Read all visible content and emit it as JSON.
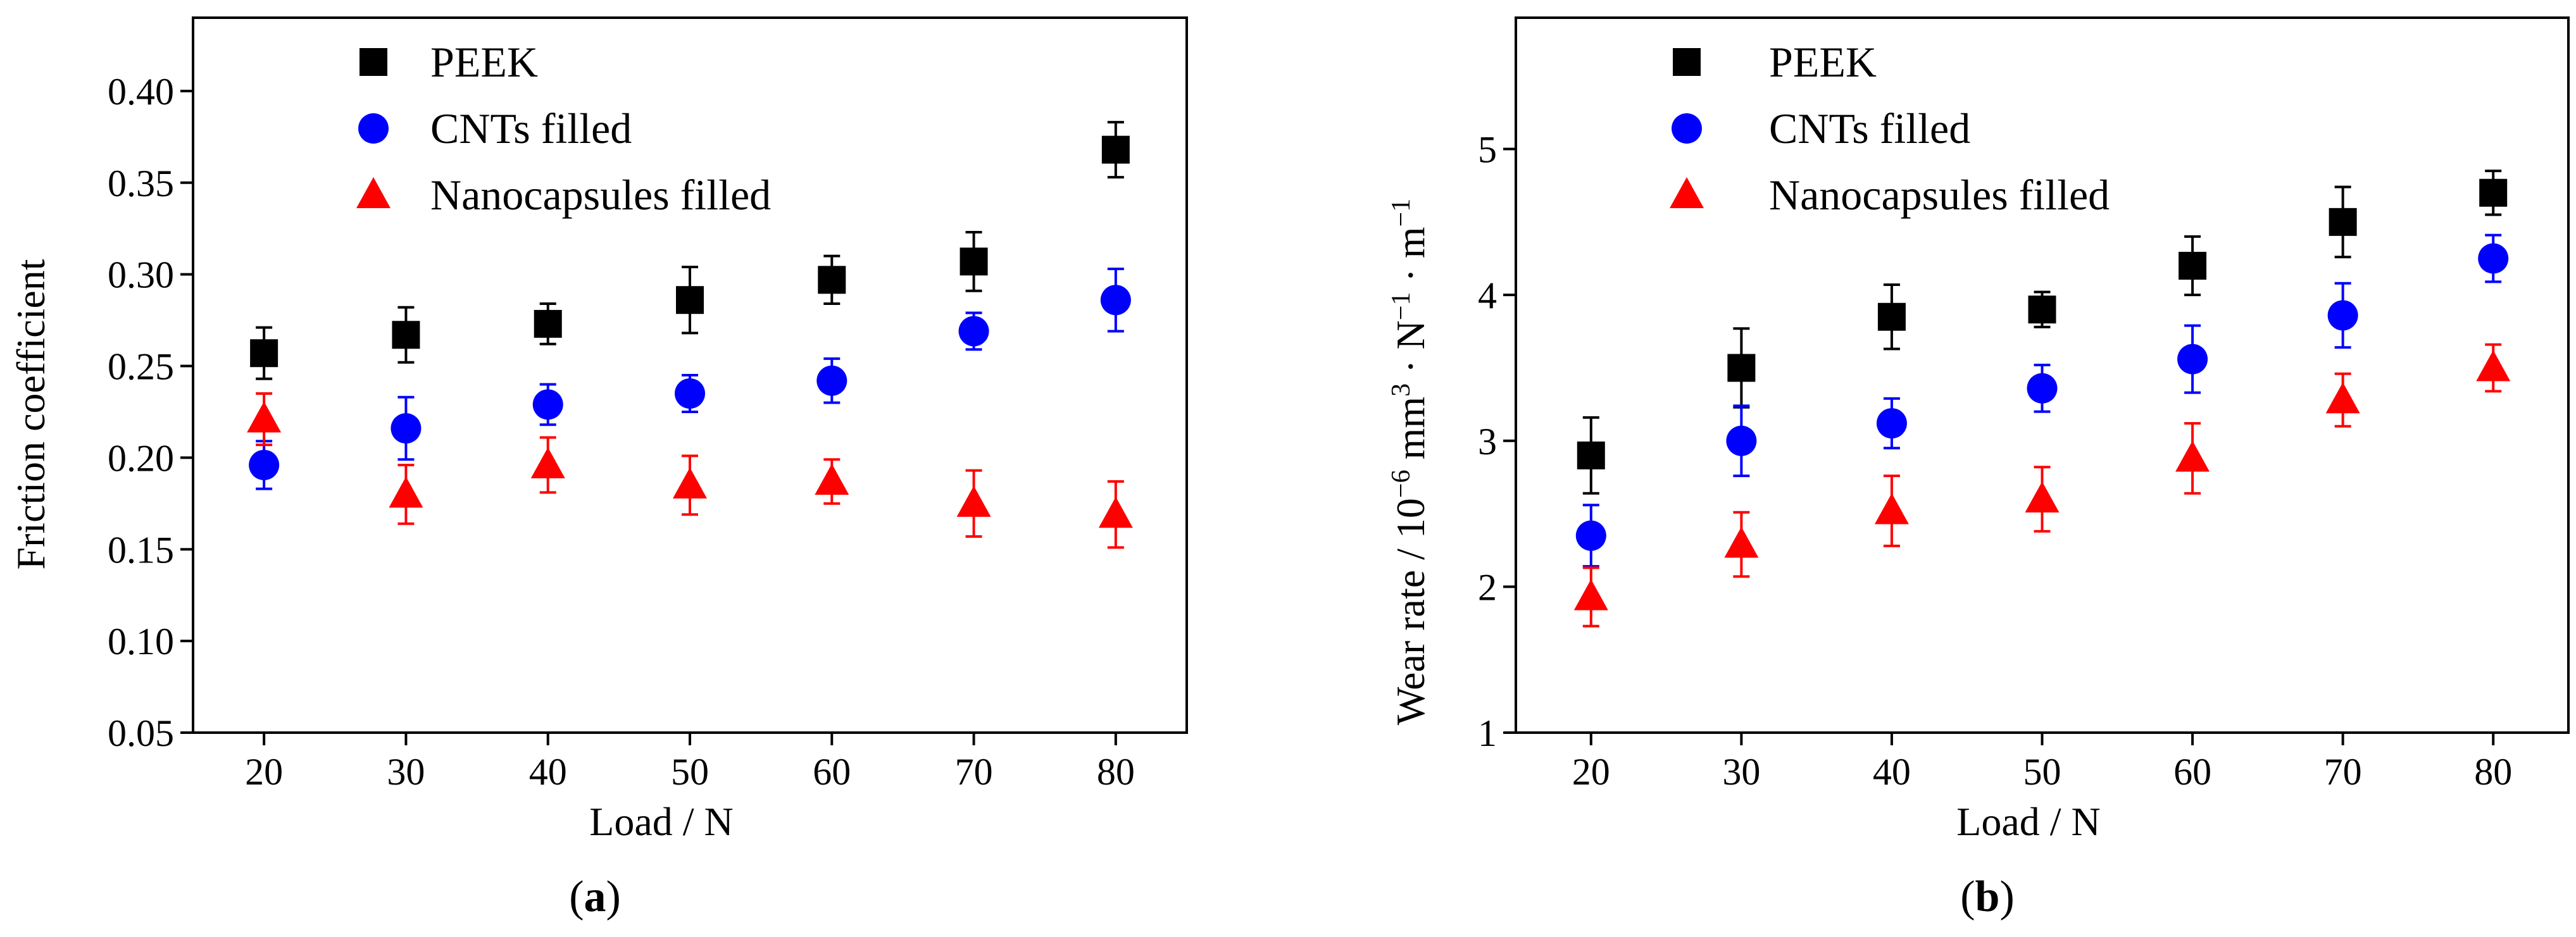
{
  "chart_data": [
    {
      "type": "scatter",
      "panel_label": "a",
      "xlabel": "Load / N",
      "ylabel": "Friction coefficient",
      "xlim": [
        15,
        85
      ],
      "ylim": [
        0.05,
        0.44
      ],
      "xticks": [
        20,
        30,
        40,
        50,
        60,
        70,
        80
      ],
      "yticks": [
        0.05,
        0.1,
        0.15,
        0.2,
        0.25,
        0.3,
        0.35,
        0.4
      ],
      "ytick_labels": [
        "0.05",
        "0.10",
        "0.15",
        "0.20",
        "0.25",
        "0.30",
        "0.35",
        "0.40"
      ],
      "grid": false,
      "legend_position": "top-center",
      "x": [
        20,
        30,
        40,
        50,
        60,
        70,
        80
      ],
      "series": [
        {
          "name": "PEEK",
          "marker": "square",
          "color": "#000000",
          "values": [
            0.257,
            0.267,
            0.273,
            0.286,
            0.297,
            0.307,
            0.368
          ],
          "errors": [
            0.014,
            0.015,
            0.011,
            0.018,
            0.013,
            0.016,
            0.015
          ]
        },
        {
          "name": "CNTs filled",
          "marker": "circle",
          "color": "#0000ff",
          "values": [
            0.196,
            0.216,
            0.229,
            0.235,
            0.242,
            0.269,
            0.286
          ],
          "errors": [
            0.013,
            0.017,
            0.011,
            0.01,
            0.012,
            0.01,
            0.017
          ]
        },
        {
          "name": "Nanocapsules filled",
          "marker": "triangle",
          "color": "#ff0000",
          "values": [
            0.221,
            0.18,
            0.196,
            0.185,
            0.187,
            0.175,
            0.169
          ],
          "errors": [
            0.014,
            0.016,
            0.015,
            0.016,
            0.012,
            0.018,
            0.018
          ]
        }
      ]
    },
    {
      "type": "scatter",
      "panel_label": "b",
      "xlabel": "Load / N",
      "ylabel": "Wear rate / 10⁻⁶ mm³ · N⁻¹ · m⁻¹",
      "xlim": [
        15,
        85
      ],
      "ylim": [
        1,
        5.9
      ],
      "xticks": [
        20,
        30,
        40,
        50,
        60,
        70,
        80
      ],
      "yticks": [
        1,
        2,
        3,
        4,
        5
      ],
      "ytick_labels": [
        "1",
        "2",
        "3",
        "4",
        "5"
      ],
      "grid": false,
      "legend_position": "top-left",
      "x": [
        20,
        30,
        40,
        50,
        60,
        70,
        80
      ],
      "series": [
        {
          "name": "PEEK",
          "marker": "square",
          "color": "#000000",
          "values": [
            2.9,
            3.5,
            3.85,
            3.9,
            4.2,
            4.5,
            4.7
          ],
          "errors": [
            0.26,
            0.27,
            0.22,
            0.12,
            0.2,
            0.24,
            0.15
          ]
        },
        {
          "name": "CNTs filled",
          "marker": "circle",
          "color": "#0000ff",
          "values": [
            2.35,
            3.0,
            3.12,
            3.36,
            3.56,
            3.86,
            4.25
          ],
          "errors": [
            0.21,
            0.24,
            0.17,
            0.16,
            0.23,
            0.22,
            0.16
          ]
        },
        {
          "name": "Nanocapsules filled",
          "marker": "triangle",
          "color": "#ff0000",
          "values": [
            1.93,
            2.29,
            2.52,
            2.6,
            2.88,
            3.28,
            3.5
          ],
          "errors": [
            0.2,
            0.22,
            0.24,
            0.22,
            0.24,
            0.18,
            0.16
          ]
        }
      ]
    }
  ]
}
